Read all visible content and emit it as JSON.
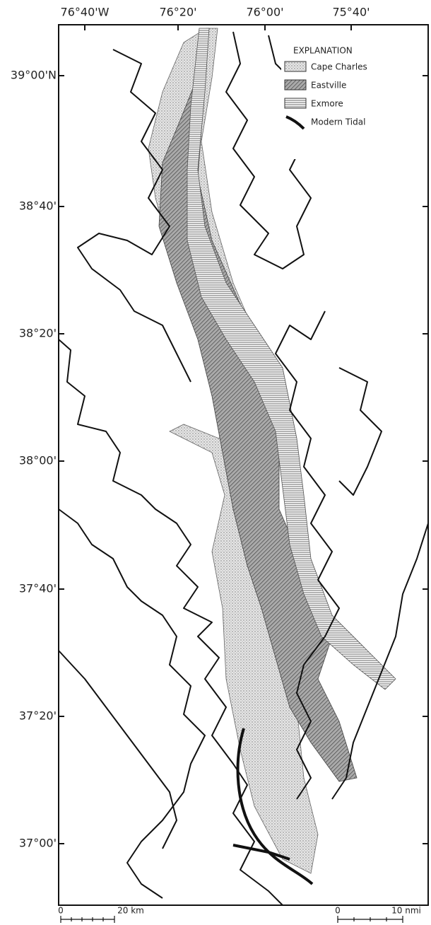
{
  "map": {
    "longitude_labels": [
      "76°40'W",
      "76°20'",
      "76°00'",
      "75°40'"
    ],
    "latitude_labels": [
      "39°00'N",
      "38°40'",
      "38°20'",
      "38°00'",
      "37°40'",
      "37°20'",
      "37°00'"
    ],
    "legend": {
      "title": "EXPLANATION",
      "items": [
        "Cape Charles",
        "Eastville",
        "Exmore",
        "Modern Tidal"
      ]
    },
    "scale_bars": [
      {
        "start": "0",
        "end": "20 km"
      },
      {
        "start": "0",
        "end": "10 nmi"
      }
    ]
  }
}
